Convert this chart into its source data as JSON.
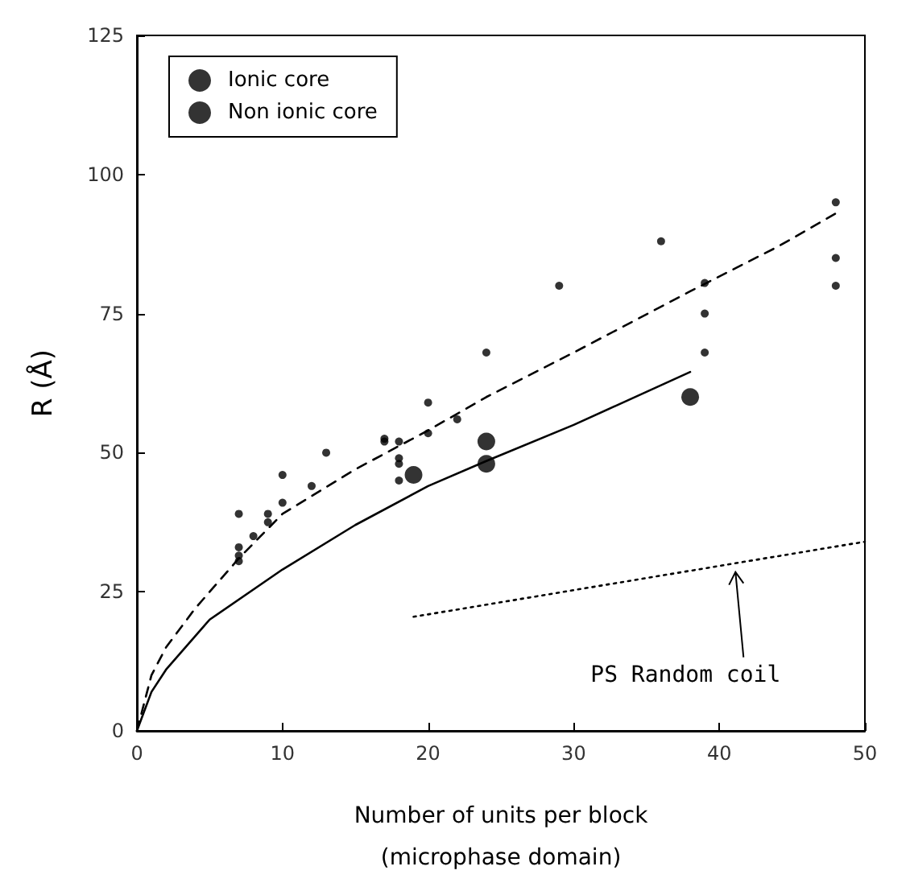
{
  "chart_data": {
    "type": "scatter",
    "xlabel": "Number of units per block\n(microphase domain)",
    "ylabel": "R (Å)",
    "xlim": [
      0,
      50
    ],
    "xticks": [
      0,
      10,
      20,
      30,
      40,
      50
    ],
    "ylim": [
      0,
      125
    ],
    "yticks": [
      0,
      25,
      50,
      75,
      100,
      125
    ],
    "grid": false,
    "legend": "top left",
    "annotations": [
      {
        "text": "PS Random coil",
        "x": 41,
        "y": 30
      }
    ],
    "series": [
      {
        "name": "Ionic core",
        "marker": "circle",
        "color": "#000000",
        "x": [
          7,
          7,
          7,
          7,
          8,
          9,
          9,
          10,
          10,
          12,
          13,
          17,
          17,
          18,
          18,
          18,
          18,
          20,
          20,
          22,
          24,
          29,
          36,
          39,
          39,
          39,
          48,
          48,
          48
        ],
        "values": [
          39,
          33,
          31.5,
          30.5,
          35,
          39,
          37.5,
          46,
          41,
          44,
          50,
          52.5,
          52,
          52,
          49,
          48,
          45,
          59,
          53.5,
          56,
          68,
          80,
          88,
          80.5,
          75,
          68,
          95,
          85,
          80
        ]
      },
      {
        "name": "Non ionic core",
        "marker": "circle",
        "color": "#000000",
        "x": [
          19,
          24,
          24,
          38
        ],
        "values": [
          46,
          52,
          48,
          60
        ]
      },
      {
        "type": "line",
        "marker": "none",
        "line_style": "dashed",
        "color": "#000000",
        "x": [
          0,
          1,
          2,
          4,
          7,
          10,
          15,
          20,
          24,
          30,
          38,
          44,
          48
        ],
        "values": [
          0,
          10,
          15,
          22,
          31,
          39,
          47,
          54,
          60,
          68,
          79,
          87,
          93
        ]
      },
      {
        "type": "line",
        "marker": "none",
        "line_style": "solid",
        "color": "#000000",
        "x": [
          0,
          1,
          2,
          5,
          10,
          15,
          20,
          24,
          30,
          38
        ],
        "values": [
          0,
          7,
          11,
          20,
          29,
          37,
          44,
          48.5,
          55,
          64.5
        ]
      },
      {
        "type": "line",
        "marker": "none",
        "line_style": "dotted",
        "color": "#000000",
        "x": [
          19,
          50
        ],
        "values": [
          20.5,
          34
        ]
      }
    ]
  }
}
